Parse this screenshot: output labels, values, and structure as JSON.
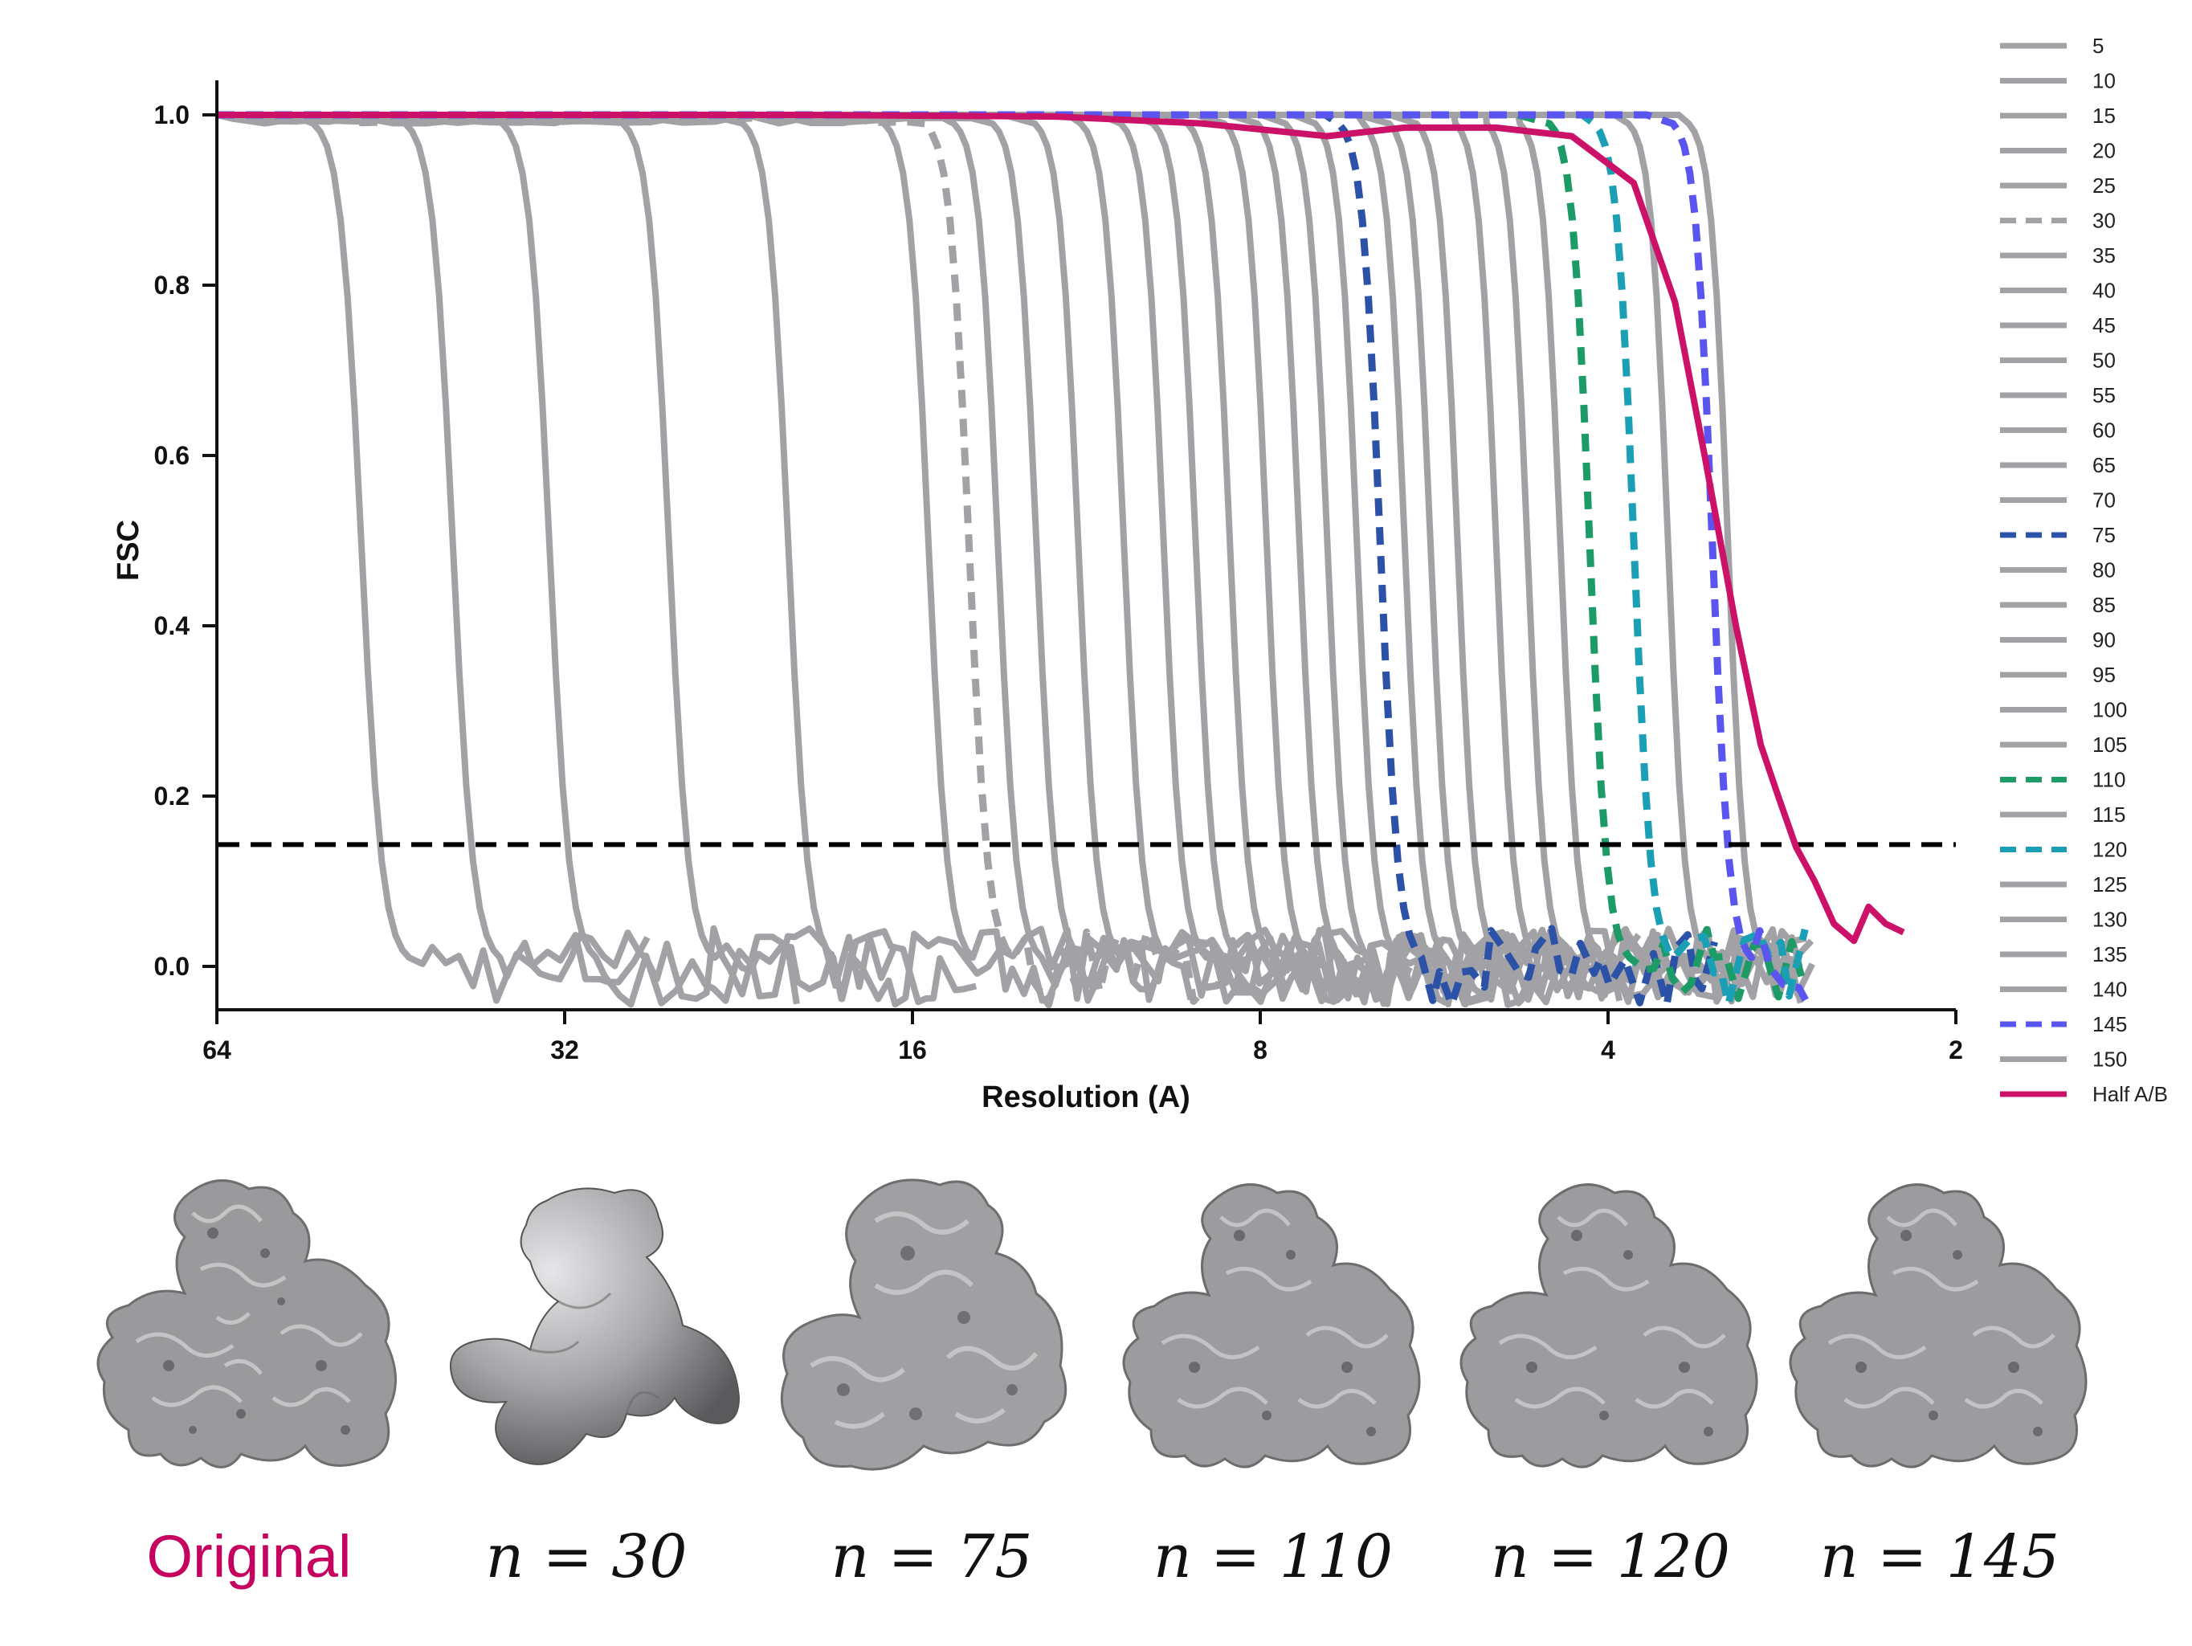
{
  "chart_data": {
    "type": "line",
    "xlabel": "Resolution (A)",
    "ylabel": "FSC",
    "x_scale": "log2-reciprocal",
    "x_ticks": [
      "64",
      "32",
      "16",
      "8",
      "4",
      "2"
    ],
    "y_ticks": [
      "0.0",
      "0.2",
      "0.4",
      "0.6",
      "0.8",
      "1.0"
    ],
    "xlim": [
      64,
      2
    ],
    "ylim": [
      -0.05,
      1.05
    ],
    "threshold": 0.143,
    "grid": false,
    "legend_position": "right",
    "colors": {
      "gray": "#a2a2a6",
      "threshold": "#000000",
      "half": "#cc1268",
      "n75": "#2b52a6",
      "n110": "#1d9b67",
      "n120": "#1b9fb4",
      "n145": "#5a55ee"
    },
    "series": [
      {
        "name": "5",
        "style": "solid",
        "color": "#a2a2a6"
      },
      {
        "name": "10",
        "style": "solid",
        "color": "#a2a2a6"
      },
      {
        "name": "15",
        "style": "solid",
        "color": "#a2a2a6"
      },
      {
        "name": "20",
        "style": "solid",
        "color": "#a2a2a6"
      },
      {
        "name": "25",
        "style": "solid",
        "color": "#a2a2a6"
      },
      {
        "name": "30",
        "style": "dashed",
        "color": "#a2a2a6"
      },
      {
        "name": "35",
        "style": "solid",
        "color": "#a2a2a6"
      },
      {
        "name": "40",
        "style": "solid",
        "color": "#a2a2a6"
      },
      {
        "name": "45",
        "style": "solid",
        "color": "#a2a2a6"
      },
      {
        "name": "50",
        "style": "solid",
        "color": "#a2a2a6"
      },
      {
        "name": "55",
        "style": "solid",
        "color": "#a2a2a6"
      },
      {
        "name": "60",
        "style": "solid",
        "color": "#a2a2a6"
      },
      {
        "name": "65",
        "style": "solid",
        "color": "#a2a2a6"
      },
      {
        "name": "70",
        "style": "solid",
        "color": "#a2a2a6"
      },
      {
        "name": "75",
        "style": "dashed",
        "color": "#2b52a6"
      },
      {
        "name": "80",
        "style": "solid",
        "color": "#a2a2a6"
      },
      {
        "name": "85",
        "style": "solid",
        "color": "#a2a2a6"
      },
      {
        "name": "90",
        "style": "solid",
        "color": "#a2a2a6"
      },
      {
        "name": "95",
        "style": "solid",
        "color": "#a2a2a6"
      },
      {
        "name": "100",
        "style": "solid",
        "color": "#a2a2a6"
      },
      {
        "name": "105",
        "style": "solid",
        "color": "#a2a2a6"
      },
      {
        "name": "110",
        "style": "dashed",
        "color": "#1d9b67"
      },
      {
        "name": "115",
        "style": "solid",
        "color": "#a2a2a6"
      },
      {
        "name": "120",
        "style": "dashed",
        "color": "#1b9fb4"
      },
      {
        "name": "125",
        "style": "solid",
        "color": "#a2a2a6"
      },
      {
        "name": "130",
        "style": "solid",
        "color": "#a2a2a6"
      },
      {
        "name": "135",
        "style": "solid",
        "color": "#a2a2a6"
      },
      {
        "name": "140",
        "style": "solid",
        "color": "#a2a2a6"
      },
      {
        "name": "145",
        "style": "dashed",
        "color": "#5a55ee"
      },
      {
        "name": "150",
        "style": "solid",
        "color": "#a2a2a6"
      },
      {
        "name": "Half A/B",
        "style": "solid",
        "color": "#cc1268"
      }
    ],
    "gray_series_cutoffs": {
      "units": "resolution (A) where FSC crosses 0.5",
      "values": {
        "5": 48,
        "10": 40,
        "15": 33,
        "20": 26,
        "25": 20.5,
        "30": 14.3,
        "35": 15.5,
        "40": 13.5,
        "45": 12.5,
        "50": 11.5,
        "55": 10.5,
        "60": 9.7,
        "65": 9.1,
        "70": 8.5,
        "75": 6.3,
        "80": 7.9,
        "85": 7.4,
        "90": 7.0,
        "95": 6.6,
        "100": 6.0,
        "105": 5.7,
        "110": 4.15,
        "115": 5.4,
        "120": 3.8,
        "125": 5.0,
        "130": 4.7,
        "135": 4.4,
        "140": 3.55,
        "145": 3.25,
        "150": 3.15
      }
    },
    "half_ab_points": [
      [
        64,
        1.0
      ],
      [
        40,
        1.0
      ],
      [
        20,
        1.0
      ],
      [
        12,
        0.998
      ],
      [
        9,
        0.99
      ],
      [
        7,
        0.975
      ],
      [
        6,
        0.985
      ],
      [
        5,
        0.985
      ],
      [
        4.3,
        0.975
      ],
      [
        3.8,
        0.92
      ],
      [
        3.5,
        0.78
      ],
      [
        3.3,
        0.6
      ],
      [
        3.1,
        0.4
      ],
      [
        2.95,
        0.26
      ],
      [
        2.85,
        0.2
      ],
      [
        2.75,
        0.14
      ],
      [
        2.65,
        0.1
      ],
      [
        2.55,
        0.05
      ],
      [
        2.45,
        0.03
      ],
      [
        2.38,
        0.07
      ],
      [
        2.3,
        0.05
      ],
      [
        2.22,
        0.04
      ]
    ]
  },
  "panels": [
    {
      "label": "Original"
    },
    {
      "label": "n = 30"
    },
    {
      "label": "n = 75"
    },
    {
      "label": "n = 110"
    },
    {
      "label": "n = 120"
    },
    {
      "label": "n = 145"
    }
  ]
}
